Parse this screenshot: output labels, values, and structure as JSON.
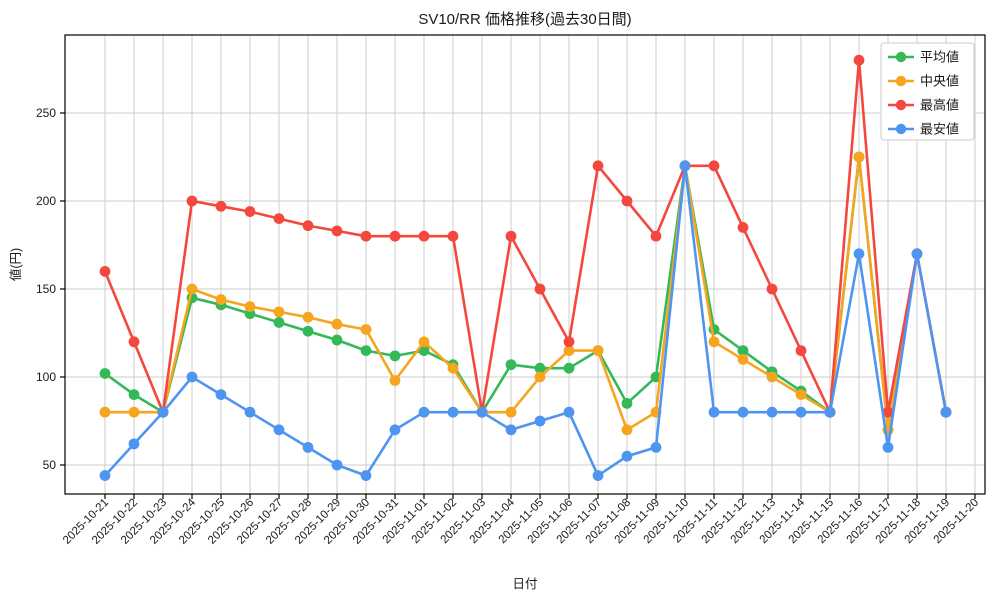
{
  "chart_data": {
    "type": "line",
    "title": "SV10/RR 価格推移(過去30日間)",
    "xlabel": "日付",
    "ylabel": "値(円)",
    "yticks": [
      50,
      100,
      150,
      200,
      250
    ],
    "ylim": [
      33,
      294
    ],
    "grid": true,
    "legend_position": "top-right",
    "background": "#ffffff",
    "grid_color": "#cccccc",
    "spine_color": "#000000",
    "categories": [
      "2025-10-21",
      "2025-10-22",
      "2025-10-23",
      "2025-10-24",
      "2025-10-25",
      "2025-10-26",
      "2025-10-27",
      "2025-10-28",
      "2025-10-29",
      "2025-10-30",
      "2025-10-31",
      "2025-11-01",
      "2025-11-02",
      "2025-11-03",
      "2025-11-04",
      "2025-11-05",
      "2025-11-06",
      "2025-11-07",
      "2025-11-08",
      "2025-11-09",
      "2025-11-10",
      "2025-11-11",
      "2025-11-12",
      "2025-11-13",
      "2025-11-14",
      "2025-11-15",
      "2025-11-16",
      "2025-11-17",
      "2025-11-18",
      "2025-11-19",
      "2025-11-20"
    ],
    "series": [
      {
        "name": "平均値",
        "color": "#35b857",
        "values": [
          102,
          90,
          80,
          145,
          141,
          136,
          131,
          126,
          121,
          115,
          112,
          115,
          107,
          80,
          107,
          105,
          105,
          115,
          85,
          100,
          220,
          127,
          115,
          103,
          92,
          80,
          225,
          70,
          170,
          80,
          null
        ]
      },
      {
        "name": "中央値",
        "color": "#f6a51f",
        "values": [
          80,
          80,
          80,
          150,
          144,
          140,
          137,
          134,
          130,
          127,
          98,
          120,
          105,
          80,
          80,
          100,
          115,
          115,
          70,
          80,
          220,
          120,
          110,
          100,
          90,
          80,
          225,
          70,
          170,
          80,
          null
        ]
      },
      {
        "name": "最高値",
        "color": "#f4473d",
        "values": [
          160,
          120,
          80,
          200,
          197,
          194,
          190,
          186,
          183,
          180,
          180,
          180,
          180,
          80,
          180,
          150,
          120,
          220,
          200,
          180,
          220,
          220,
          185,
          150,
          115,
          80,
          280,
          80,
          170,
          80,
          null
        ]
      },
      {
        "name": "最安値",
        "color": "#4e95f2",
        "values": [
          44,
          62,
          80,
          100,
          90,
          80,
          70,
          60,
          50,
          44,
          70,
          80,
          80,
          80,
          70,
          75,
          80,
          44,
          55,
          60,
          220,
          80,
          80,
          80,
          80,
          80,
          170,
          60,
          170,
          80,
          null
        ]
      }
    ]
  }
}
